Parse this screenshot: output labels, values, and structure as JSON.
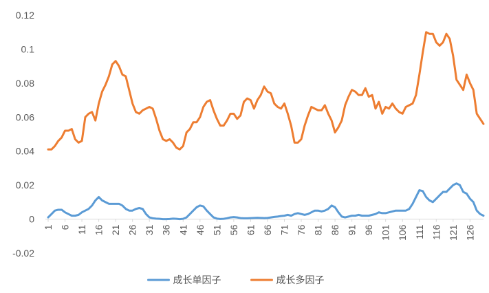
{
  "chart_data": {
    "type": "line",
    "x": [
      1,
      2,
      3,
      4,
      5,
      6,
      7,
      8,
      9,
      10,
      11,
      12,
      13,
      14,
      15,
      16,
      17,
      18,
      19,
      20,
      21,
      22,
      23,
      24,
      25,
      26,
      27,
      28,
      29,
      30,
      31,
      32,
      33,
      34,
      35,
      36,
      37,
      38,
      39,
      40,
      41,
      42,
      43,
      44,
      45,
      46,
      47,
      48,
      49,
      50,
      51,
      52,
      53,
      54,
      55,
      56,
      57,
      58,
      59,
      60,
      61,
      62,
      63,
      64,
      65,
      66,
      67,
      68,
      69,
      70,
      71,
      72,
      73,
      74,
      75,
      76,
      77,
      78,
      79,
      80,
      81,
      82,
      83,
      84,
      85,
      86,
      87,
      88,
      89,
      90,
      91,
      92,
      93,
      94,
      95,
      96,
      97,
      98,
      99,
      100,
      101,
      102,
      103,
      104,
      105,
      106,
      107,
      108,
      109,
      110,
      111,
      112,
      113,
      114,
      115,
      116,
      117,
      118,
      119,
      120,
      121,
      122,
      123,
      124,
      125,
      126,
      127,
      128,
      129,
      130
    ],
    "xlim": [
      1,
      130
    ],
    "xticks": [
      1,
      6,
      11,
      16,
      21,
      26,
      31,
      36,
      41,
      46,
      51,
      56,
      61,
      66,
      71,
      76,
      81,
      86,
      91,
      96,
      101,
      106,
      111,
      116,
      121,
      126
    ],
    "ylim": [
      -0.02,
      0.12
    ],
    "yticks": [
      {
        "value": -0.02,
        "label": "-0.02"
      },
      0,
      {
        "value": 0.02,
        "label": "0.02"
      },
      {
        "value": 0.04,
        "label": "0.04"
      },
      {
        "value": 0.06,
        "label": "0.06"
      },
      {
        "value": 0.08,
        "label": "0.08"
      },
      {
        "value": 0.1,
        "label": "0.1"
      },
      {
        "value": 0.12,
        "label": "0.12"
      }
    ],
    "grid": false,
    "legend": "bottom",
    "series": [
      {
        "name": "成长单因子",
        "color": "#5b9bd5",
        "values": [
          0.001,
          0.003,
          0.005,
          0.0055,
          0.0055,
          0.004,
          0.003,
          0.002,
          0.002,
          0.0025,
          0.004,
          0.005,
          0.006,
          0.008,
          0.011,
          0.013,
          0.011,
          0.01,
          0.009,
          0.009,
          0.009,
          0.009,
          0.008,
          0.006,
          0.005,
          0.005,
          0.006,
          0.0065,
          0.006,
          0.003,
          0.001,
          0.0005,
          0.0003,
          0.0002,
          0,
          0,
          0.0001,
          0.0003,
          0.0002,
          0,
          0.0002,
          0.001,
          0.003,
          0.005,
          0.007,
          0.008,
          0.0075,
          0.005,
          0.003,
          0.001,
          0.0003,
          0.0001,
          0.0002,
          0.0005,
          0.001,
          0.0012,
          0.001,
          0.0006,
          0.0005,
          0.0005,
          0.0006,
          0.0007,
          0.0008,
          0.0007,
          0.0006,
          0.0007,
          0.001,
          0.0013,
          0.0015,
          0.0018,
          0.002,
          0.0025,
          0.002,
          0.003,
          0.0035,
          0.003,
          0.0025,
          0.003,
          0.004,
          0.005,
          0.005,
          0.0045,
          0.005,
          0.006,
          0.008,
          0.007,
          0.004,
          0.0015,
          0.001,
          0.0015,
          0.002,
          0.002,
          0.0025,
          0.002,
          0.002,
          0.002,
          0.0025,
          0.003,
          0.004,
          0.0035,
          0.0035,
          0.004,
          0.0045,
          0.005,
          0.005,
          0.005,
          0.005,
          0.006,
          0.009,
          0.013,
          0.017,
          0.0165,
          0.013,
          0.011,
          0.01,
          0.012,
          0.014,
          0.016,
          0.016,
          0.018,
          0.02,
          0.021,
          0.02,
          0.016,
          0.015,
          0.012,
          0.01,
          0.005,
          0.003,
          0.002
        ]
      },
      {
        "name": "成长多因子",
        "color": "#ed7d31",
        "values": [
          0.041,
          0.041,
          0.043,
          0.046,
          0.048,
          0.052,
          0.052,
          0.053,
          0.047,
          0.045,
          0.046,
          0.06,
          0.062,
          0.063,
          0.058,
          0.068,
          0.075,
          0.079,
          0.084,
          0.091,
          0.093,
          0.09,
          0.085,
          0.084,
          0.076,
          0.068,
          0.063,
          0.062,
          0.064,
          0.065,
          0.066,
          0.065,
          0.059,
          0.052,
          0.047,
          0.046,
          0.047,
          0.045,
          0.042,
          0.041,
          0.043,
          0.051,
          0.053,
          0.057,
          0.057,
          0.06,
          0.066,
          0.069,
          0.07,
          0.064,
          0.059,
          0.055,
          0.055,
          0.058,
          0.062,
          0.062,
          0.059,
          0.061,
          0.069,
          0.071,
          0.07,
          0.065,
          0.07,
          0.073,
          0.078,
          0.075,
          0.074,
          0.068,
          0.066,
          0.065,
          0.068,
          0.062,
          0.055,
          0.045,
          0.045,
          0.047,
          0.055,
          0.061,
          0.066,
          0.065,
          0.064,
          0.064,
          0.067,
          0.062,
          0.058,
          0.051,
          0.054,
          0.058,
          0.067,
          0.072,
          0.076,
          0.075,
          0.073,
          0.073,
          0.077,
          0.072,
          0.073,
          0.065,
          0.069,
          0.062,
          0.066,
          0.065,
          0.068,
          0.065,
          0.063,
          0.062,
          0.066,
          0.067,
          0.068,
          0.073,
          0.085,
          0.098,
          0.11,
          0.109,
          0.109,
          0.104,
          0.102,
          0.104,
          0.109,
          0.106,
          0.096,
          0.082,
          0.079,
          0.076,
          0.085,
          0.08,
          0.076,
          0.062,
          0.059,
          0.056
        ]
      }
    ]
  }
}
